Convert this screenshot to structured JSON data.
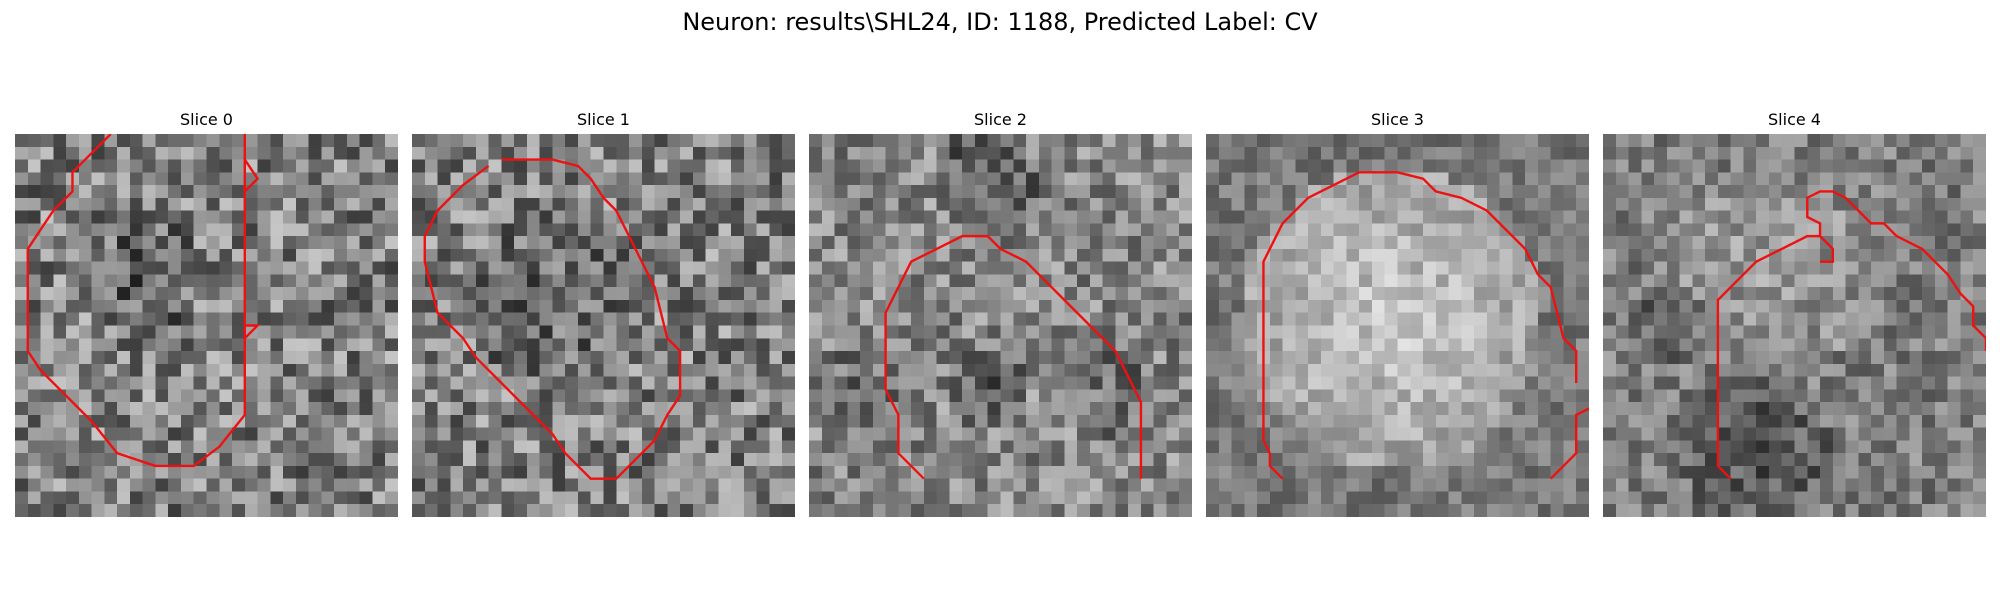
{
  "figure": {
    "title": "Neuron: results\\SHL24, ID: 1188, Predicted Label: CV"
  },
  "panels": [
    {
      "title": "Slice 0",
      "texture": {
        "base": 128,
        "amp": 70,
        "seed": 11,
        "blobs": [
          [
            10,
            11,
            5,
            -35
          ]
        ]
      },
      "contours": [
        [
          [
            7.5,
            0
          ],
          [
            5,
            2.5
          ],
          [
            4.5,
            3
          ],
          [
            4.5,
            4.5
          ],
          [
            3,
            6
          ],
          [
            2,
            7.5
          ],
          [
            1,
            9
          ],
          [
            1,
            17
          ],
          [
            2,
            18.5
          ],
          [
            3.5,
            20
          ],
          [
            5,
            21.5
          ],
          [
            6,
            22.5
          ],
          [
            8,
            25
          ],
          [
            11,
            26
          ],
          [
            14,
            26
          ],
          [
            16,
            24.5
          ],
          [
            18,
            22
          ],
          [
            18,
            2
          ],
          [
            19,
            3.5
          ],
          [
            18,
            4.5
          ],
          [
            18,
            15
          ],
          [
            19,
            15
          ],
          [
            18,
            16
          ]
        ],
        [
          [
            18,
            0
          ],
          [
            18,
            2
          ]
        ]
      ]
    },
    {
      "title": "Slice 1",
      "texture": {
        "base": 128,
        "amp": 68,
        "seed": 23,
        "blobs": [
          [
            11,
            13,
            7,
            -25
          ]
        ]
      },
      "contours": [
        [
          [
            6,
            2.5
          ],
          [
            4,
            4
          ],
          [
            3,
            5
          ],
          [
            2,
            6
          ],
          [
            1,
            8
          ],
          [
            1,
            10
          ],
          [
            1.5,
            12
          ],
          [
            2,
            14
          ],
          [
            3,
            15
          ],
          [
            4,
            16
          ],
          [
            5,
            17.5
          ],
          [
            6,
            18.5
          ],
          [
            7,
            19.5
          ],
          [
            8,
            20.5
          ],
          [
            9,
            21.5
          ],
          [
            10,
            22.5
          ],
          [
            11,
            23.5
          ],
          [
            12,
            25
          ],
          [
            13,
            26
          ],
          [
            14,
            27
          ],
          [
            16,
            27
          ],
          [
            17,
            26
          ],
          [
            18,
            25
          ],
          [
            19,
            24
          ],
          [
            20,
            22
          ],
          [
            21,
            20.5
          ],
          [
            21,
            17
          ],
          [
            20,
            16
          ],
          [
            19.5,
            14
          ],
          [
            19,
            12
          ],
          [
            18,
            10
          ],
          [
            17,
            8
          ],
          [
            16,
            6
          ],
          [
            15,
            5
          ],
          [
            14,
            3.5
          ],
          [
            13,
            2.5
          ],
          [
            11,
            2
          ],
          [
            9,
            2
          ],
          [
            7,
            2
          ]
        ],
        []
      ]
    },
    {
      "title": "Slice 2",
      "texture": {
        "base": 135,
        "amp": 55,
        "seed": 37,
        "blobs": [
          [
            14,
            3.5,
            4,
            -55
          ],
          [
            14,
            20,
            3,
            -50
          ],
          [
            4,
            20,
            4,
            -30
          ],
          [
            24,
            20,
            4,
            -30
          ]
        ]
      },
      "contours": [
        [
          [
            9,
            27
          ],
          [
            7,
            25
          ],
          [
            7,
            22
          ],
          [
            6,
            20
          ],
          [
            6,
            14
          ],
          [
            7,
            12
          ],
          [
            8,
            10
          ],
          [
            10,
            9
          ],
          [
            12,
            8
          ],
          [
            14,
            8
          ],
          [
            15,
            9
          ],
          [
            17,
            10
          ],
          [
            18,
            11
          ],
          [
            19,
            12
          ],
          [
            20,
            13
          ],
          [
            21,
            14
          ],
          [
            22,
            15
          ],
          [
            23,
            16
          ],
          [
            24,
            17
          ],
          [
            25,
            19
          ],
          [
            26,
            21
          ],
          [
            26,
            27
          ]
        ],
        []
      ]
    },
    {
      "title": "Slice 3",
      "texture": {
        "base": 120,
        "amp": 35,
        "seed": 49,
        "blobs": [
          [
            14.5,
            14.5,
            12,
            80
          ]
        ]
      },
      "contours": [
        [
          [
            6,
            27
          ],
          [
            5,
            26
          ],
          [
            5,
            25
          ],
          [
            4.5,
            24
          ],
          [
            4.5,
            10
          ],
          [
            5,
            9
          ],
          [
            6,
            7
          ],
          [
            7,
            6
          ],
          [
            8,
            5
          ],
          [
            9,
            4.5
          ],
          [
            10,
            4
          ],
          [
            11,
            3.5
          ],
          [
            12,
            3
          ],
          [
            15,
            3
          ],
          [
            17,
            3.5
          ],
          [
            18,
            4.5
          ],
          [
            20,
            5
          ],
          [
            22,
            6
          ],
          [
            23,
            7
          ],
          [
            24,
            8
          ],
          [
            25,
            9
          ],
          [
            26,
            11
          ],
          [
            27,
            12
          ],
          [
            27.5,
            14
          ],
          [
            28,
            16
          ],
          [
            29,
            17
          ],
          [
            29,
            19.5
          ]
        ],
        [
          [
            27,
            27
          ],
          [
            29,
            25
          ],
          [
            29,
            22
          ],
          [
            30,
            21.5
          ]
        ]
      ]
    },
    {
      "title": "Slice 4",
      "texture": {
        "base": 125,
        "amp": 45,
        "seed": 61,
        "blobs": [
          [
            13,
            11,
            8,
            30
          ],
          [
            12,
            25,
            6,
            -45
          ],
          [
            5,
            15,
            3,
            -35
          ]
        ]
      },
      "contours": [
        [
          [
            10,
            27
          ],
          [
            9,
            26
          ],
          [
            9,
            13
          ],
          [
            10,
            12
          ],
          [
            11,
            11
          ],
          [
            12,
            10
          ],
          [
            13,
            9.5
          ],
          [
            14,
            9
          ],
          [
            15,
            8.5
          ],
          [
            16,
            8
          ],
          [
            17,
            8
          ],
          [
            17,
            7
          ],
          [
            16,
            6.5
          ],
          [
            16,
            5
          ],
          [
            17,
            4.5
          ],
          [
            18,
            4.5
          ],
          [
            19,
            5
          ],
          [
            20,
            6
          ],
          [
            21,
            7
          ],
          [
            22,
            7
          ],
          [
            23,
            8
          ],
          [
            24,
            8.5
          ],
          [
            25,
            9
          ],
          [
            26,
            10
          ],
          [
            27,
            11
          ],
          [
            28,
            12.5
          ],
          [
            29,
            13.5
          ],
          [
            29,
            15
          ],
          [
            30,
            16
          ],
          [
            30,
            17
          ]
        ],
        [
          [
            17,
            8
          ],
          [
            18,
            9
          ],
          [
            18,
            10
          ],
          [
            17,
            10
          ]
        ]
      ]
    }
  ]
}
